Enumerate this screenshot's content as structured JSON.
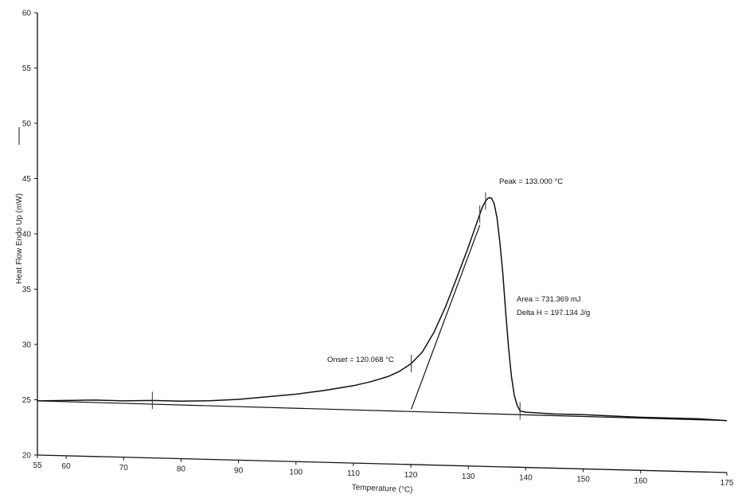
{
  "chart_data": {
    "type": "line",
    "title": "",
    "xlabel": "Temperature (°C)",
    "ylabel": "Heat Flow Endo Up (mW)",
    "xlim": [
      55,
      175
    ],
    "ylim": [
      20,
      60
    ],
    "x_ticks": [
      55,
      60,
      70,
      80,
      90,
      100,
      110,
      120,
      130,
      140,
      150,
      160,
      175
    ],
    "y_ticks": [
      20,
      25,
      30,
      35,
      40,
      45,
      50,
      55,
      60
    ],
    "grid": false,
    "series": [
      {
        "x": [
          55,
          60,
          65,
          70,
          75,
          80,
          85,
          90,
          95,
          100,
          105,
          110,
          113,
          116,
          118,
          120,
          122,
          124,
          126,
          128,
          130,
          131,
          132,
          132.5,
          133,
          133.5,
          134,
          134.5,
          135,
          135.5,
          136,
          136.5,
          137,
          137.5,
          138,
          138.5,
          139,
          140,
          145,
          150,
          160,
          170,
          175
        ],
        "y": [
          24.9,
          25.0,
          25.1,
          25.1,
          25.2,
          25.2,
          25.3,
          25.5,
          25.8,
          26.1,
          26.5,
          27.0,
          27.4,
          27.9,
          28.4,
          29.1,
          30.2,
          32.0,
          34.3,
          37.0,
          39.8,
          41.3,
          42.8,
          43.5,
          44.0,
          44.3,
          44.3,
          43.8,
          42.5,
          40.3,
          37.5,
          34.0,
          30.8,
          28.2,
          26.5,
          25.6,
          25.1,
          25.0,
          24.9,
          24.9,
          24.8,
          24.8,
          24.7
        ]
      }
    ],
    "baseline": {
      "x": [
        55,
        175
      ],
      "y": [
        24.9,
        24.7
      ]
    },
    "onset_tangent": {
      "x": [
        120.068,
        132
      ],
      "y": [
        25.0,
        41.8
      ]
    },
    "markers_x": [
      75,
      120.068,
      132,
      133.0,
      139.0
    ],
    "annotations": {
      "peak": "Peak = 133.000 °C",
      "onset": "Onset = 120.068 °C",
      "area": "Area = 731.369 mJ",
      "delta_h": "Delta H = 197.134 J/g"
    }
  }
}
